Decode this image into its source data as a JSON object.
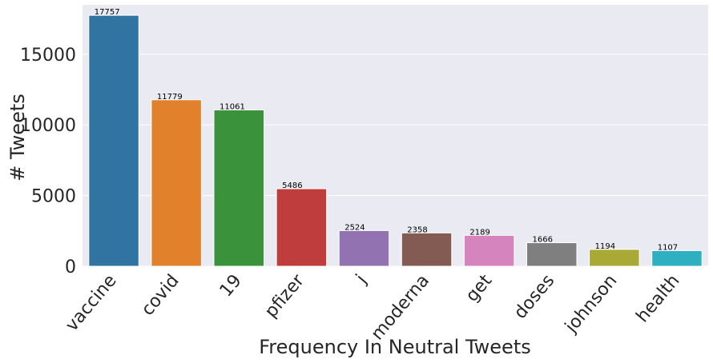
{
  "chart_data": {
    "type": "bar",
    "title": "",
    "xlabel": "Frequency In Neutral Tweets",
    "ylabel": "# Tweets",
    "ylim": [
      0,
      18500
    ],
    "yticks": [
      0,
      5000,
      10000,
      15000
    ],
    "grid": true,
    "legend": "none",
    "categories": [
      "vaccine",
      "covid",
      "19",
      "pfizer",
      "j",
      "moderna",
      "get",
      "doses",
      "johnson",
      "health"
    ],
    "values": [
      17757,
      11779,
      11061,
      5486,
      2524,
      2358,
      2189,
      1666,
      1194,
      1107
    ],
    "colors": [
      "#3274a1",
      "#e1812c",
      "#3a923a",
      "#c03d3e",
      "#9372b2",
      "#845b53",
      "#d684bd",
      "#7f7f7f",
      "#a9aa35",
      "#2eb0c0"
    ],
    "background": "#eaeaf2"
  }
}
